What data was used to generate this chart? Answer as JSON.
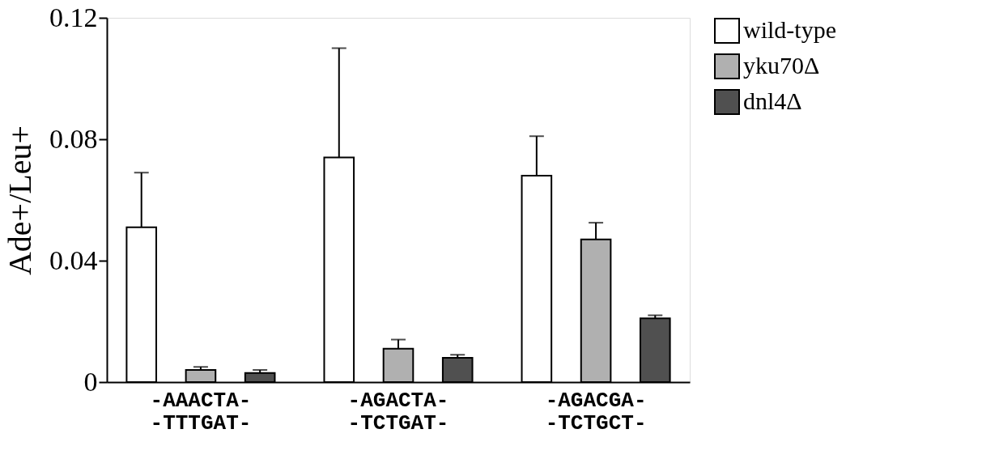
{
  "chart_data": {
    "type": "bar",
    "ylabel": "Ade+/Leu+",
    "categories": [
      "-AAACTA-\n-TTTGAT-",
      "-AGACTA-\n-TCTGAT-",
      "-AGACGA-\n-TCTGCT-"
    ],
    "series": [
      {
        "name": "wild-type",
        "color": "#ffffff",
        "values": [
          0.051,
          0.074,
          0.068
        ],
        "errors": [
          [
            0.051,
            0.069
          ],
          [
            0.074,
            0.11
          ],
          [
            0.068,
            0.081
          ]
        ]
      },
      {
        "name": "yku70Δ",
        "color": "#b0b0b0",
        "values": [
          0.004,
          0.011,
          0.047
        ],
        "errors": [
          [
            0.004,
            0.005
          ],
          [
            0.011,
            0.014
          ],
          [
            0.047,
            0.0525
          ]
        ]
      },
      {
        "name": "dnl4Δ",
        "color": "#505050",
        "values": [
          0.003,
          0.008,
          0.021
        ],
        "errors": [
          [
            0.003,
            0.004
          ],
          [
            0.008,
            0.009
          ],
          [
            0.021,
            0.022
          ]
        ]
      }
    ],
    "ylim": [
      0,
      0.12
    ],
    "yticks": [
      0,
      0.04,
      0.08,
      0.12
    ],
    "grid": false,
    "legend": "top right"
  }
}
